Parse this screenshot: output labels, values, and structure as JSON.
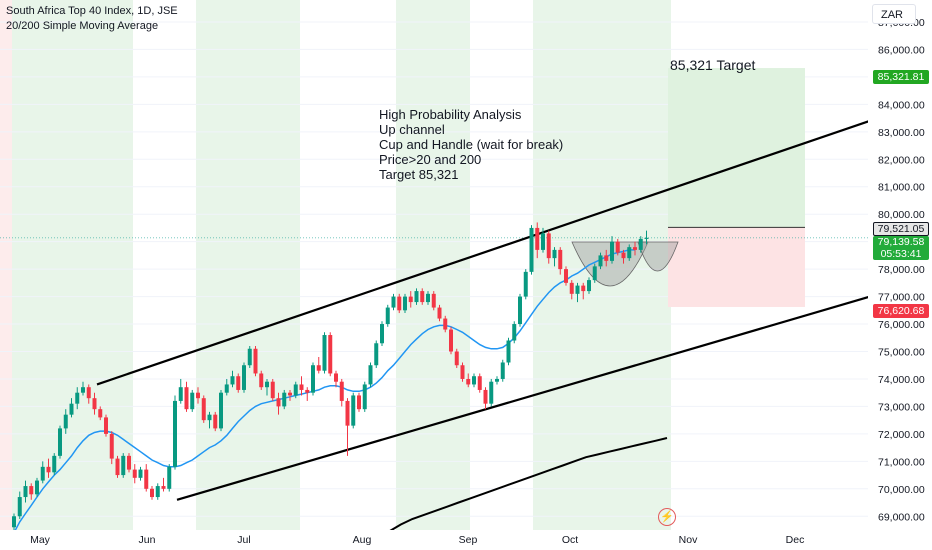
{
  "header": {
    "title": "South Africa Top 40 Index, 1D, JSE",
    "subtitle": "20/200 Simple Moving Average"
  },
  "currency": "ZAR",
  "annotation": {
    "lines": [
      "High Probability Analysis",
      "Up channel",
      "Cup and Handle (wait for break)",
      "Price>20 and 200",
      "Target 85,321"
    ]
  },
  "target_label": "85,321 Target",
  "price_tags": {
    "target": "85,321.81",
    "resistance": "79,521.05",
    "current": "79,139.58",
    "countdown": "05:53:41",
    "stop": "76,620.68"
  },
  "colors": {
    "up": "#089981",
    "down": "#f23645",
    "ma20": "#2196f3",
    "ma200": "#000000",
    "session_shade": "#e8f5e9",
    "target_zone": "#dff2df",
    "stop_zone": "#fde3e4"
  },
  "chart_data": {
    "type": "candlestick",
    "title": "South Africa Top 40 Index, 1D, JSE",
    "y_ticks": [
      69000,
      70000,
      71000,
      72000,
      73000,
      74000,
      75000,
      76000,
      77000,
      78000,
      79000,
      80000,
      81000,
      82000,
      83000,
      84000,
      85000,
      86000,
      87000
    ],
    "y_tick_labels": [
      "69,000.00",
      "70,000.00",
      "71,000.00",
      "72,000.00",
      "73,000.00",
      "74,000.00",
      "75,000.00",
      "76,000.00",
      "77,000.00",
      "78,000.00",
      "79,000.00",
      "80,000.00",
      "81,000.00",
      "82,000.00",
      "83,000.00",
      "84,000.00",
      "85,000.00",
      "86,000.00",
      "87,000.00"
    ],
    "ylim": [
      68500,
      87800
    ],
    "x_labels": [
      "May",
      "Jun",
      "Jul",
      "Aug",
      "Sep",
      "Oct",
      "Nov",
      "Dec"
    ],
    "candles": [
      [
        68600,
        69100,
        68500,
        69000
      ],
      [
        69000,
        69900,
        68900,
        69700
      ],
      [
        69700,
        70300,
        69500,
        70100
      ],
      [
        70100,
        70200,
        69600,
        69800
      ],
      [
        69800,
        70400,
        69700,
        70300
      ],
      [
        70300,
        71000,
        70200,
        70800
      ],
      [
        70800,
        71100,
        70400,
        70600
      ],
      [
        70600,
        71300,
        70500,
        71200
      ],
      [
        71200,
        72300,
        71100,
        72200
      ],
      [
        72200,
        72900,
        72000,
        72700
      ],
      [
        72700,
        73300,
        72600,
        73100
      ],
      [
        73100,
        73700,
        72900,
        73500
      ],
      [
        73500,
        73900,
        73400,
        73700
      ],
      [
        73700,
        73800,
        73100,
        73300
      ],
      [
        73300,
        73500,
        72700,
        72900
      ],
      [
        72900,
        73000,
        72500,
        72600
      ],
      [
        72600,
        72700,
        71900,
        72000
      ],
      [
        72000,
        72100,
        70900,
        71100
      ],
      [
        71100,
        71200,
        70400,
        70500
      ],
      [
        70500,
        71300,
        70400,
        71200
      ],
      [
        71200,
        71300,
        70600,
        70700
      ],
      [
        70700,
        70900,
        70200,
        70400
      ],
      [
        70400,
        70800,
        70300,
        70700
      ],
      [
        70700,
        70900,
        69900,
        70000
      ],
      [
        70000,
        70100,
        69600,
        69700
      ],
      [
        69700,
        70200,
        69600,
        70100
      ],
      [
        70100,
        70400,
        69900,
        70000
      ],
      [
        70000,
        70900,
        69900,
        70800
      ],
      [
        70800,
        73400,
        70700,
        73200
      ],
      [
        73200,
        74000,
        73100,
        73700
      ],
      [
        73700,
        73900,
        72800,
        72900
      ],
      [
        72900,
        73600,
        72800,
        73500
      ],
      [
        73500,
        73700,
        73100,
        73300
      ],
      [
        73300,
        73400,
        72400,
        72500
      ],
      [
        72500,
        72800,
        72200,
        72700
      ],
      [
        72700,
        72800,
        72100,
        72200
      ],
      [
        72200,
        73600,
        72100,
        73500
      ],
      [
        73500,
        74000,
        73400,
        73800
      ],
      [
        73800,
        74300,
        73700,
        74100
      ],
      [
        74100,
        74200,
        73500,
        73600
      ],
      [
        73600,
        74600,
        73500,
        74500
      ],
      [
        74500,
        75200,
        74400,
        75100
      ],
      [
        75100,
        75200,
        74100,
        74200
      ],
      [
        74200,
        74300,
        73600,
        73700
      ],
      [
        73700,
        74000,
        73400,
        73900
      ],
      [
        73900,
        74000,
        73200,
        73300
      ],
      [
        73300,
        73500,
        72700,
        73000
      ],
      [
        73000,
        73600,
        72900,
        73500
      ],
      [
        73500,
        73600,
        73200,
        73400
      ],
      [
        73400,
        73900,
        73300,
        73800
      ],
      [
        73800,
        74100,
        73400,
        73600
      ],
      [
        73600,
        73700,
        73200,
        73500
      ],
      [
        73500,
        74600,
        73400,
        74500
      ],
      [
        74500,
        74800,
        74200,
        74300
      ],
      [
        74300,
        75700,
        74200,
        75600
      ],
      [
        75600,
        75700,
        74100,
        74200
      ],
      [
        74200,
        74300,
        73700,
        73900
      ],
      [
        73900,
        74000,
        73000,
        73200
      ],
      [
        73200,
        73300,
        71200,
        72300
      ],
      [
        72300,
        73500,
        72200,
        73400
      ],
      [
        73400,
        73500,
        72800,
        72900
      ],
      [
        72900,
        73900,
        72800,
        73800
      ],
      [
        73800,
        74600,
        73700,
        74500
      ],
      [
        74500,
        75400,
        74400,
        75300
      ],
      [
        75300,
        76100,
        75200,
        76000
      ],
      [
        76000,
        76700,
        75900,
        76600
      ],
      [
        76600,
        77100,
        76500,
        77000
      ],
      [
        77000,
        77100,
        76400,
        76500
      ],
      [
        76500,
        77100,
        76400,
        77000
      ],
      [
        77000,
        77200,
        76600,
        76800
      ],
      [
        76800,
        77300,
        76700,
        77200
      ],
      [
        77200,
        77300,
        76700,
        76800
      ],
      [
        76800,
        77200,
        76700,
        77100
      ],
      [
        77100,
        77200,
        76500,
        76600
      ],
      [
        76600,
        76700,
        76100,
        76200
      ],
      [
        76200,
        76300,
        75700,
        75800
      ],
      [
        75800,
        75900,
        74900,
        75000
      ],
      [
        75000,
        75100,
        74400,
        74500
      ],
      [
        74500,
        74600,
        73900,
        74000
      ],
      [
        74000,
        74200,
        73700,
        73800
      ],
      [
        73800,
        74200,
        73700,
        74100
      ],
      [
        74100,
        74200,
        73500,
        73600
      ],
      [
        73600,
        73700,
        72900,
        73100
      ],
      [
        73100,
        74000,
        73000,
        73900
      ],
      [
        73900,
        74100,
        73800,
        74000
      ],
      [
        74000,
        74700,
        73900,
        74600
      ],
      [
        74600,
        75500,
        74500,
        75400
      ],
      [
        75400,
        76100,
        75300,
        76000
      ],
      [
        76000,
        77100,
        75900,
        77000
      ],
      [
        77000,
        78000,
        76900,
        77900
      ],
      [
        77900,
        79600,
        77800,
        79500
      ],
      [
        79500,
        79700,
        78400,
        78700
      ],
      [
        78700,
        79500,
        78600,
        79300
      ],
      [
        79300,
        79400,
        78200,
        78400
      ],
      [
        78400,
        78800,
        78100,
        78700
      ],
      [
        78700,
        78800,
        77800,
        78000
      ],
      [
        78000,
        78100,
        77400,
        77500
      ],
      [
        77500,
        77600,
        76900,
        77100
      ],
      [
        77100,
        77500,
        76800,
        77400
      ],
      [
        77400,
        77500,
        76900,
        77200
      ],
      [
        77200,
        77700,
        77100,
        77600
      ],
      [
        77600,
        78200,
        77500,
        78100
      ],
      [
        78100,
        78600,
        78000,
        78500
      ],
      [
        78500,
        78700,
        78100,
        78300
      ],
      [
        78300,
        79200,
        78200,
        79000
      ],
      [
        79000,
        79100,
        78500,
        78600
      ],
      [
        78600,
        78700,
        78200,
        78400
      ],
      [
        78400,
        78900,
        78300,
        78800
      ],
      [
        78800,
        79000,
        78500,
        78700
      ],
      [
        78700,
        79200,
        78600,
        79100
      ],
      [
        79100,
        79400,
        78900,
        79140
      ]
    ],
    "ma20": [
      68400,
      68800,
      69100,
      69400,
      69700,
      70000,
      70250,
      70500,
      70700,
      70950,
      71200,
      71500,
      71750,
      71950,
      72050,
      72100,
      72100,
      72050,
      71950,
      71800,
      71650,
      71500,
      71350,
      71200,
      71050,
      70950,
      70850,
      70800,
      70800,
      70850,
      70950,
      71050,
      71200,
      71350,
      71500,
      71600,
      71750,
      71950,
      72200,
      72450,
      72650,
      72850,
      73000,
      73100,
      73150,
      73200,
      73250,
      73300,
      73350,
      73400,
      73450,
      73500,
      73550,
      73600,
      73700,
      73750,
      73750,
      73700,
      73600,
      73550,
      73550,
      73600,
      73700,
      73850,
      74050,
      74300,
      74500,
      74750,
      75000,
      75250,
      75450,
      75650,
      75800,
      75900,
      75950,
      75950,
      75900,
      75800,
      75700,
      75550,
      75400,
      75250,
      75150,
      75100,
      75100,
      75150,
      75300,
      75500,
      75750,
      76050,
      76350,
      76650,
      76900,
      77150,
      77350,
      77500,
      77600,
      77750,
      77850,
      78000,
      78150,
      78250,
      78350,
      78450,
      78550,
      78600,
      78650,
      78700,
      78700
    ],
    "ma200": [
      65000,
      65400,
      65800,
      66200,
      66600,
      67000,
      67400,
      67800,
      68150,
      68450,
      68700,
      68900,
      69050,
      69200,
      69350,
      69500,
      69650,
      69800,
      69950,
      70100,
      70250,
      70400,
      70550,
      70700,
      70850,
      71000,
      71150,
      71250,
      71350,
      71450,
      71550,
      71650,
      71750,
      71850
    ],
    "channel_upper": {
      "from": [
        73800,
        "May"
      ],
      "to": [
        83400,
        "Dec"
      ]
    },
    "channel_lower": {
      "from": [
        69600,
        "Jun"
      ],
      "to": [
        77000,
        "Dec"
      ]
    },
    "target_price": 85321.81,
    "entry_price": 79521.05,
    "stop_price": 76620.68,
    "current_price": 79139.58
  }
}
